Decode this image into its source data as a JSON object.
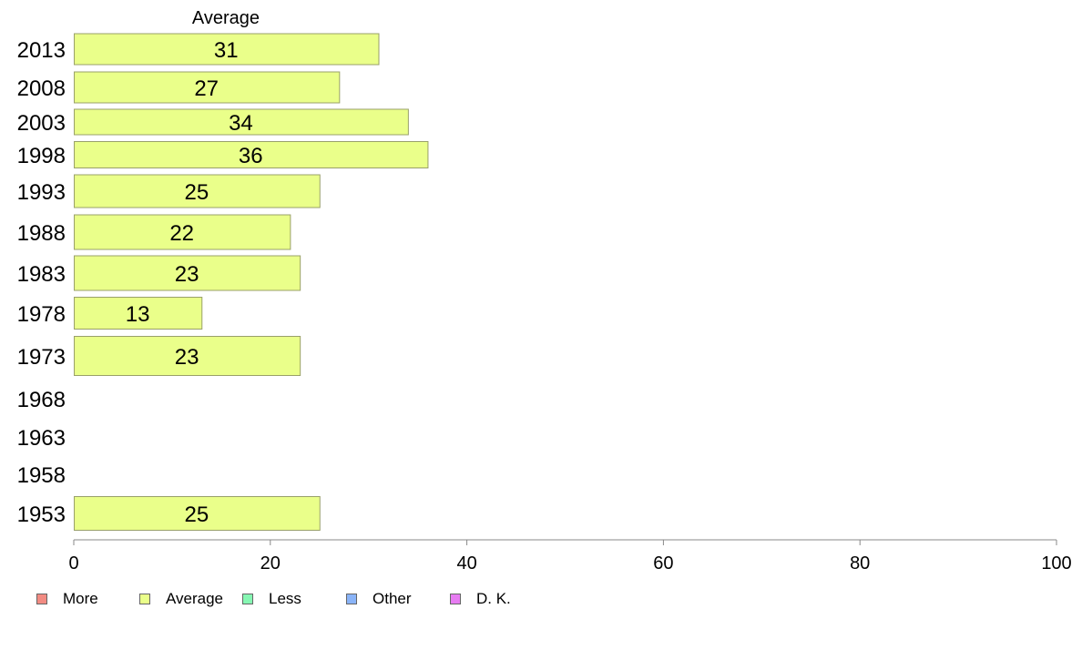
{
  "chart_data": {
    "type": "bar",
    "orientation": "horizontal",
    "column_title": "Average",
    "categories": [
      "2013",
      "2008",
      "2003",
      "1998",
      "1993",
      "1988",
      "1983",
      "1978",
      "1973",
      "1968",
      "1963",
      "1958",
      "1953"
    ],
    "series": [
      {
        "name": "Average",
        "values": [
          31,
          27,
          34,
          36,
          25,
          22,
          23,
          13,
          23,
          null,
          null,
          null,
          25
        ]
      }
    ],
    "xlim": [
      0,
      100
    ],
    "xticks": [
      0,
      20,
      40,
      60,
      80,
      100
    ],
    "grid": false,
    "legend_position": "bottom-left",
    "legend": [
      {
        "label": "More",
        "color": "#f28b82"
      },
      {
        "label": "Average",
        "color": "#eaff8a"
      },
      {
        "label": "Less",
        "color": "#86f7b3"
      },
      {
        "label": "Other",
        "color": "#8ab4f8"
      },
      {
        "label": "D. K.",
        "color": "#e77cf2"
      }
    ],
    "bar_color": "#eaff8a",
    "bar_border_color": "#99a06a",
    "axis_color": "#888888"
  }
}
